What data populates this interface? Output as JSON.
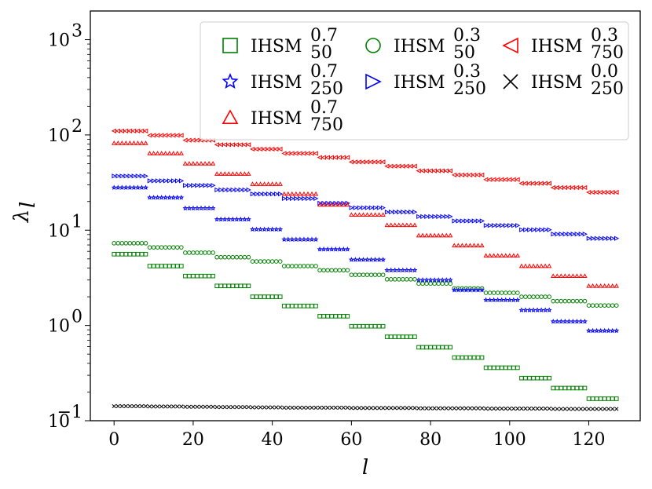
{
  "chart_data": {
    "type": "scatter",
    "xlabel": "l",
    "ylabel": "λ",
    "ylabel_sub": "l",
    "x_range": [
      0,
      127
    ],
    "xlim": [
      -6,
      133
    ],
    "ylim": [
      0.1,
      2000
    ],
    "yscale": "log",
    "x_ticks": [
      0,
      20,
      40,
      60,
      80,
      100,
      120
    ],
    "x_tick_labels": [
      "0",
      "20",
      "40",
      "60",
      "80",
      "100",
      "120"
    ],
    "y_ticks": [
      0.1,
      1,
      10,
      100,
      1000
    ],
    "y_tick_labels": [
      {
        "base": "10",
        "exp": "−1"
      },
      {
        "base": "10",
        "exp": "0"
      },
      {
        "base": "10",
        "exp": "1"
      },
      {
        "base": "10",
        "exp": "2"
      },
      {
        "base": "10",
        "exp": "3"
      }
    ],
    "grid": false,
    "legend_position": "top-right",
    "legend_columns": 3,
    "series": [
      {
        "name": "IHSM",
        "sup": "0.7",
        "sub": "50",
        "marker": "square",
        "color": "#008000",
        "steps": [
          5.6,
          4.2,
          3.3,
          2.6,
          2.0,
          1.6,
          1.25,
          0.98,
          0.76,
          0.59,
          0.46,
          0.36,
          0.28,
          0.22,
          0.17
        ]
      },
      {
        "name": "IHSM",
        "sup": "0.3",
        "sub": "50",
        "marker": "circle",
        "color": "#008000",
        "steps": [
          7.3,
          6.6,
          5.8,
          5.2,
          4.7,
          4.2,
          3.8,
          3.4,
          3.05,
          2.75,
          2.45,
          2.2,
          2.0,
          1.8,
          1.62
        ]
      },
      {
        "name": "IHSM",
        "sup": "0.3",
        "sub": "750",
        "marker": "triangle-left",
        "color": "#ff0000",
        "steps": [
          110,
          99,
          88,
          79,
          71,
          64,
          58,
          52,
          47,
          42,
          38,
          34,
          31,
          28,
          25
        ]
      },
      {
        "name": "IHSM",
        "sup": "0.7",
        "sub": "250",
        "marker": "star",
        "color": "#0000ff",
        "steps": [
          28,
          22,
          17,
          13,
          10.2,
          8.0,
          6.3,
          4.9,
          3.8,
          3.0,
          2.35,
          1.85,
          1.45,
          1.1,
          0.88
        ]
      },
      {
        "name": "IHSM",
        "sup": "0.3",
        "sub": "250",
        "marker": "triangle-right",
        "color": "#0000ff",
        "steps": [
          37,
          33,
          29.5,
          26.5,
          24,
          21.5,
          19.2,
          17.2,
          15.5,
          13.9,
          12.5,
          11.2,
          10.1,
          9.1,
          8.2
        ]
      },
      {
        "name": "IHSM",
        "sup": "0.0",
        "sub": "250",
        "marker": "x",
        "color": "#000000",
        "steps": [
          0.142,
          0.141,
          0.14,
          0.139,
          0.138,
          0.137,
          0.137,
          0.136,
          0.136,
          0.135,
          0.135,
          0.134,
          0.134,
          0.133,
          0.133
        ]
      },
      {
        "name": "IHSM",
        "sup": "0.7",
        "sub": "750",
        "marker": "triangle-up",
        "color": "#ff0000",
        "steps": [
          82,
          64,
          50,
          39,
          30.5,
          24,
          18.5,
          14.5,
          11.3,
          8.8,
          6.9,
          5.4,
          4.2,
          3.3,
          2.6
        ]
      }
    ],
    "legend_order": [
      0,
      1,
      2,
      3,
      4,
      5,
      6
    ]
  }
}
